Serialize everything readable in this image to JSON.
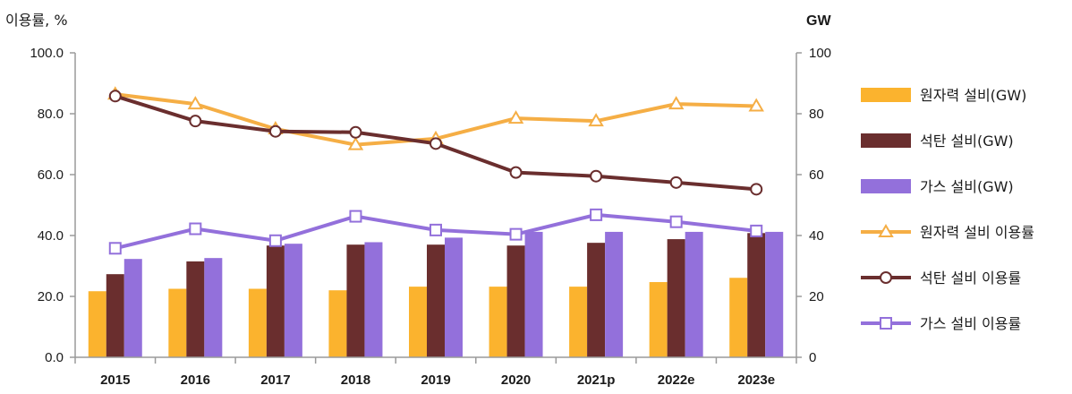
{
  "chart_data": {
    "type": "bar",
    "left_axis_label": "이용률, %",
    "right_axis_label": "GW",
    "categories": [
      "2015",
      "2016",
      "2017",
      "2018",
      "2019",
      "2020",
      "2021p",
      "2022e",
      "2023e"
    ],
    "left_ylim": [
      0,
      100
    ],
    "right_ylim": [
      0,
      100
    ],
    "left_ticks": [
      "0.0",
      "20.0",
      "40.0",
      "60.0",
      "80.0",
      "100.0"
    ],
    "right_ticks": [
      "0",
      "20",
      "40",
      "60",
      "80",
      "100"
    ],
    "bar_series": [
      {
        "name": "원자력 설비(GW)",
        "color": "#FBB32E",
        "values": [
          21.7,
          22.5,
          22.5,
          22.0,
          23.2,
          23.2,
          23.2,
          24.7,
          26.1
        ]
      },
      {
        "name": "석탄 설비(GW)",
        "color": "#6A2E2E",
        "values": [
          27.3,
          31.5,
          36.7,
          37.0,
          37.0,
          36.7,
          37.6,
          38.8,
          40.8
        ]
      },
      {
        "name": "가스 설비(GW)",
        "color": "#9370DB",
        "values": [
          32.3,
          32.6,
          37.3,
          37.8,
          39.3,
          41.2,
          41.2,
          41.2,
          41.2
        ]
      }
    ],
    "line_series": [
      {
        "name": "원자력 설비 이용률",
        "color": "#F5AE45",
        "marker": "triangle",
        "values": [
          86.4,
          83.2,
          75.0,
          69.8,
          71.8,
          78.5,
          77.6,
          83.2,
          82.5
        ]
      },
      {
        "name": "석탄 설비 이용률",
        "color": "#6A2E2E",
        "marker": "circle",
        "values": [
          85.8,
          77.6,
          74.2,
          73.9,
          70.2,
          60.7,
          59.5,
          57.4,
          55.2
        ]
      },
      {
        "name": "가스 설비 이용률",
        "color": "#9370DB",
        "marker": "square",
        "values": [
          35.8,
          42.2,
          38.3,
          46.3,
          41.8,
          40.4,
          46.8,
          44.5,
          41.5
        ]
      }
    ],
    "legend_position": "right"
  }
}
